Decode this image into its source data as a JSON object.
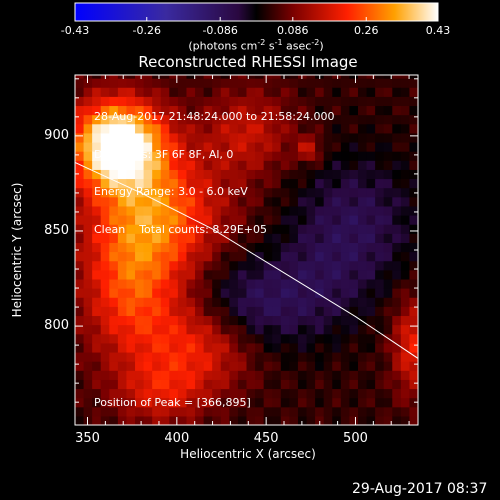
{
  "colorbar": {
    "ticks": [
      "-0.43",
      "-0.26",
      "-0.086",
      "0.086",
      "0.26",
      "0.43"
    ],
    "tick_values": [
      -0.43,
      -0.26,
      -0.086,
      0.086,
      0.26,
      0.43
    ],
    "unit_label": "(photons cm",
    "unit_sup1": "-2",
    "unit_mid": " s",
    "unit_sup2": "-1",
    "unit_tail": " asec",
    "unit_sup3": "-2",
    "unit_close": ")"
  },
  "chart_data": {
    "type": "heatmap",
    "title": "Reconstructed RHESSI Image",
    "xlabel": "Heliocentric X (arcsec)",
    "ylabel": "Heliocentric Y (arcsec)",
    "xlim": [
      343,
      535
    ],
    "ylim": [
      748,
      932
    ],
    "x_ticks": [
      350,
      400,
      450,
      500
    ],
    "y_ticks": [
      800,
      850,
      900
    ],
    "zlim": [
      -0.43,
      0.43
    ],
    "annotations": [
      "28-Aug-2017 21:48:24.000 to 21:58:24.000",
      "Detectors: 3F 6F 8F, Al, 0",
      "Energy Range: 3.0 - 6.0 keV",
      "Clean    Total counts: 8.29E+05"
    ],
    "peak_label": "Position of Peak = [366,895]",
    "peak": [
      366,
      895
    ],
    "limb_curve": [
      [
        343,
        886
      ],
      [
        380,
        870
      ],
      [
        420,
        851
      ],
      [
        460,
        828
      ],
      [
        500,
        805
      ],
      [
        535,
        783
      ]
    ],
    "sources": [
      {
        "x": 367,
        "y": 896,
        "sx": 18,
        "sy": 16,
        "amp": 0.46
      },
      {
        "x": 390,
        "y": 860,
        "sx": 26,
        "sy": 22,
        "amp": 0.22
      },
      {
        "x": 375,
        "y": 820,
        "sx": 20,
        "sy": 28,
        "amp": 0.2
      },
      {
        "x": 415,
        "y": 790,
        "sx": 22,
        "sy": 16,
        "amp": 0.16
      },
      {
        "x": 392,
        "y": 765,
        "sx": 18,
        "sy": 12,
        "amp": 0.12
      },
      {
        "x": 440,
        "y": 902,
        "sx": 18,
        "sy": 16,
        "amp": 0.12
      },
      {
        "x": 532,
        "y": 790,
        "sx": 8,
        "sy": 18,
        "amp": 0.16
      },
      {
        "x": 474,
        "y": 893,
        "sx": 5,
        "sy": 5,
        "amp": 0.12
      },
      {
        "x": 500,
        "y": 855,
        "sx": 25,
        "sy": 25,
        "amp": -0.1
      },
      {
        "x": 440,
        "y": 810,
        "sx": 22,
        "sy": 18,
        "amp": -0.12
      },
      {
        "x": 480,
        "y": 820,
        "sx": 20,
        "sy": 20,
        "amp": -0.06
      }
    ]
  },
  "timestamp": "29-Aug-2017 08:37"
}
